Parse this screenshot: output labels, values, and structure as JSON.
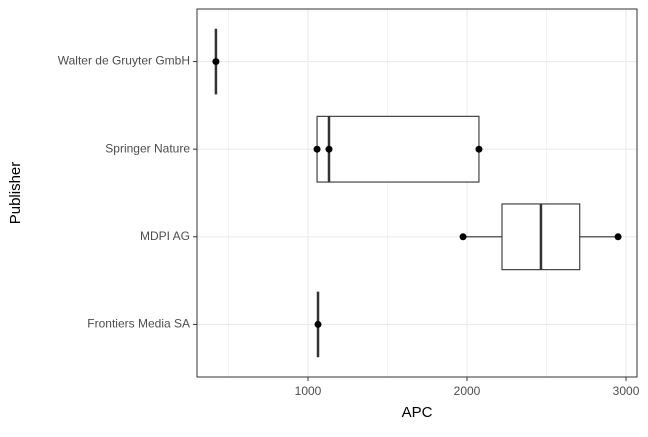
{
  "chart_data": {
    "type": "boxplot",
    "xlabel": "APC",
    "ylabel": "Publisher",
    "categories": [
      "Walter de Gruyter GmbH",
      "Springer Nature",
      "MDPI AG",
      "Frontiers Media SA"
    ],
    "min": [
      421,
      1057,
      1975,
      1063
    ],
    "q1": [
      421,
      1057,
      2220,
      1063
    ],
    "median": [
      421,
      1132,
      2465,
      1063
    ],
    "q3": [
      421,
      2075,
      2709,
      1063
    ],
    "max": [
      421,
      2075,
      2950,
      1063
    ],
    "points": [
      [
        421
      ],
      [
        1057,
        1132,
        2075
      ],
      [
        1975,
        2950
      ],
      [
        1063
      ]
    ],
    "xlim": [
      302,
      3069
    ],
    "xticks": [
      1000,
      2000,
      3000
    ],
    "xminor": [
      500,
      1500,
      2500
    ],
    "grid": true,
    "box_color": "#333333",
    "point_color": "#000000"
  }
}
